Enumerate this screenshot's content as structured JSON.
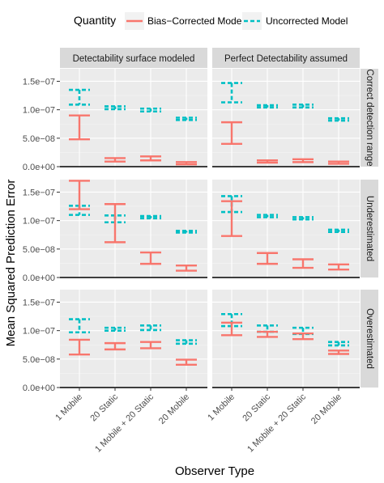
{
  "chart_data": {
    "type": "errorbar-faceted",
    "xlabel": "Observer Type",
    "ylabel": "Mean Squared Prediction Error",
    "legend": {
      "title": "Quantity",
      "position": "top",
      "entries": [
        {
          "name": "Bias−Corrected Model",
          "color": "#f8766d",
          "linetype": "solid"
        },
        {
          "name": "Uncorrected Model",
          "color": "#00bfc4",
          "linetype": "dashed"
        }
      ]
    },
    "columns": [
      "Detectability surface modeled",
      "Perfect Detectability assumed"
    ],
    "rows": [
      "Correct detection range",
      "Underestimated",
      "Overestimated"
    ],
    "categories": [
      "1 Mobile",
      "20 Static",
      "1 Mobile + 20 Static",
      "20 Mobile"
    ],
    "yticks": [
      {
        "value": 0,
        "label": "0.0e+00"
      },
      {
        "value": 5e-08,
        "label": "5.0e−08"
      },
      {
        "value": 1e-07,
        "label": "1.0e−07"
      },
      {
        "value": 1.5e-07,
        "label": "1.5e−07"
      }
    ],
    "ylim": [
      0,
      1.72e-07
    ],
    "grid": true,
    "panels": [
      {
        "row": 0,
        "col": 0,
        "uncorrected": [
          [
            1.09e-07,
            1.35e-07
          ],
          [
            1.01e-07,
            1.06e-07
          ],
          [
            9.7e-08,
            1.02e-07
          ],
          [
            8.2e-08,
            8.6e-08
          ]
        ],
        "corrected": [
          [
            4.8e-08,
            9e-08
          ],
          [
            9e-09,
            1.5e-08
          ],
          [
            1.1e-08,
            1.8e-08
          ],
          [
            4e-09,
            8e-09
          ]
        ]
      },
      {
        "row": 0,
        "col": 1,
        "uncorrected": [
          [
            1.13e-07,
            1.47e-07
          ],
          [
            1.04e-07,
            1.08e-07
          ],
          [
            1.04e-07,
            1.09e-07
          ],
          [
            8.1e-08,
            8.5e-08
          ]
        ],
        "corrected": [
          [
            4e-08,
            7.8e-08
          ],
          [
            7e-09,
            1.1e-08
          ],
          [
            8e-09,
            1.3e-08
          ],
          [
            5e-09,
            9e-09
          ]
        ]
      },
      {
        "row": 1,
        "col": 0,
        "uncorrected": [
          [
            1.1e-07,
            1.26e-07
          ],
          [
            9.7e-08,
            1.09e-07
          ],
          [
            1.04e-07,
            1.08e-07
          ],
          [
            7.9e-08,
            8.2e-08
          ]
        ],
        "corrected": [
          [
            1.2e-07,
            1.7e-07
          ],
          [
            6.2e-08,
            1.29e-07
          ],
          [
            2.4e-08,
            4.4e-08
          ],
          [
            1.2e-08,
            2.1e-08
          ]
        ]
      },
      {
        "row": 1,
        "col": 1,
        "uncorrected": [
          [
            1.15e-07,
            1.43e-07
          ],
          [
            1.06e-07,
            1.1e-07
          ],
          [
            1.02e-07,
            1.06e-07
          ],
          [
            8e-08,
            8.4e-08
          ]
        ],
        "corrected": [
          [
            7.3e-08,
            1.34e-07
          ],
          [
            2.4e-08,
            4.3e-08
          ],
          [
            1.7e-08,
            3.2e-08
          ],
          [
            1.4e-08,
            2.3e-08
          ]
        ]
      },
      {
        "row": 2,
        "col": 0,
        "uncorrected": [
          [
            9.7e-08,
            1.2e-07
          ],
          [
            1e-07,
            1.05e-07
          ],
          [
            1.01e-07,
            1.09e-07
          ],
          [
            7.7e-08,
            8.3e-08
          ]
        ],
        "corrected": [
          [
            5.8e-08,
            8.4e-08
          ],
          [
            6.7e-08,
            7.8e-08
          ],
          [
            6.9e-08,
            8e-08
          ],
          [
            4e-08,
            4.9e-08
          ]
        ]
      },
      {
        "row": 2,
        "col": 1,
        "uncorrected": [
          [
            1.08e-07,
            1.29e-07
          ],
          [
            9.8e-08,
            1.09e-07
          ],
          [
            9.4e-08,
            1.05e-07
          ],
          [
            7.4e-08,
            8e-08
          ]
        ],
        "corrected": [
          [
            9.2e-08,
            1.14e-07
          ],
          [
            8.9e-08,
            9.8e-08
          ],
          [
            8.5e-08,
            9.5e-08
          ],
          [
            5.9e-08,
            6.5e-08
          ]
        ]
      }
    ]
  }
}
